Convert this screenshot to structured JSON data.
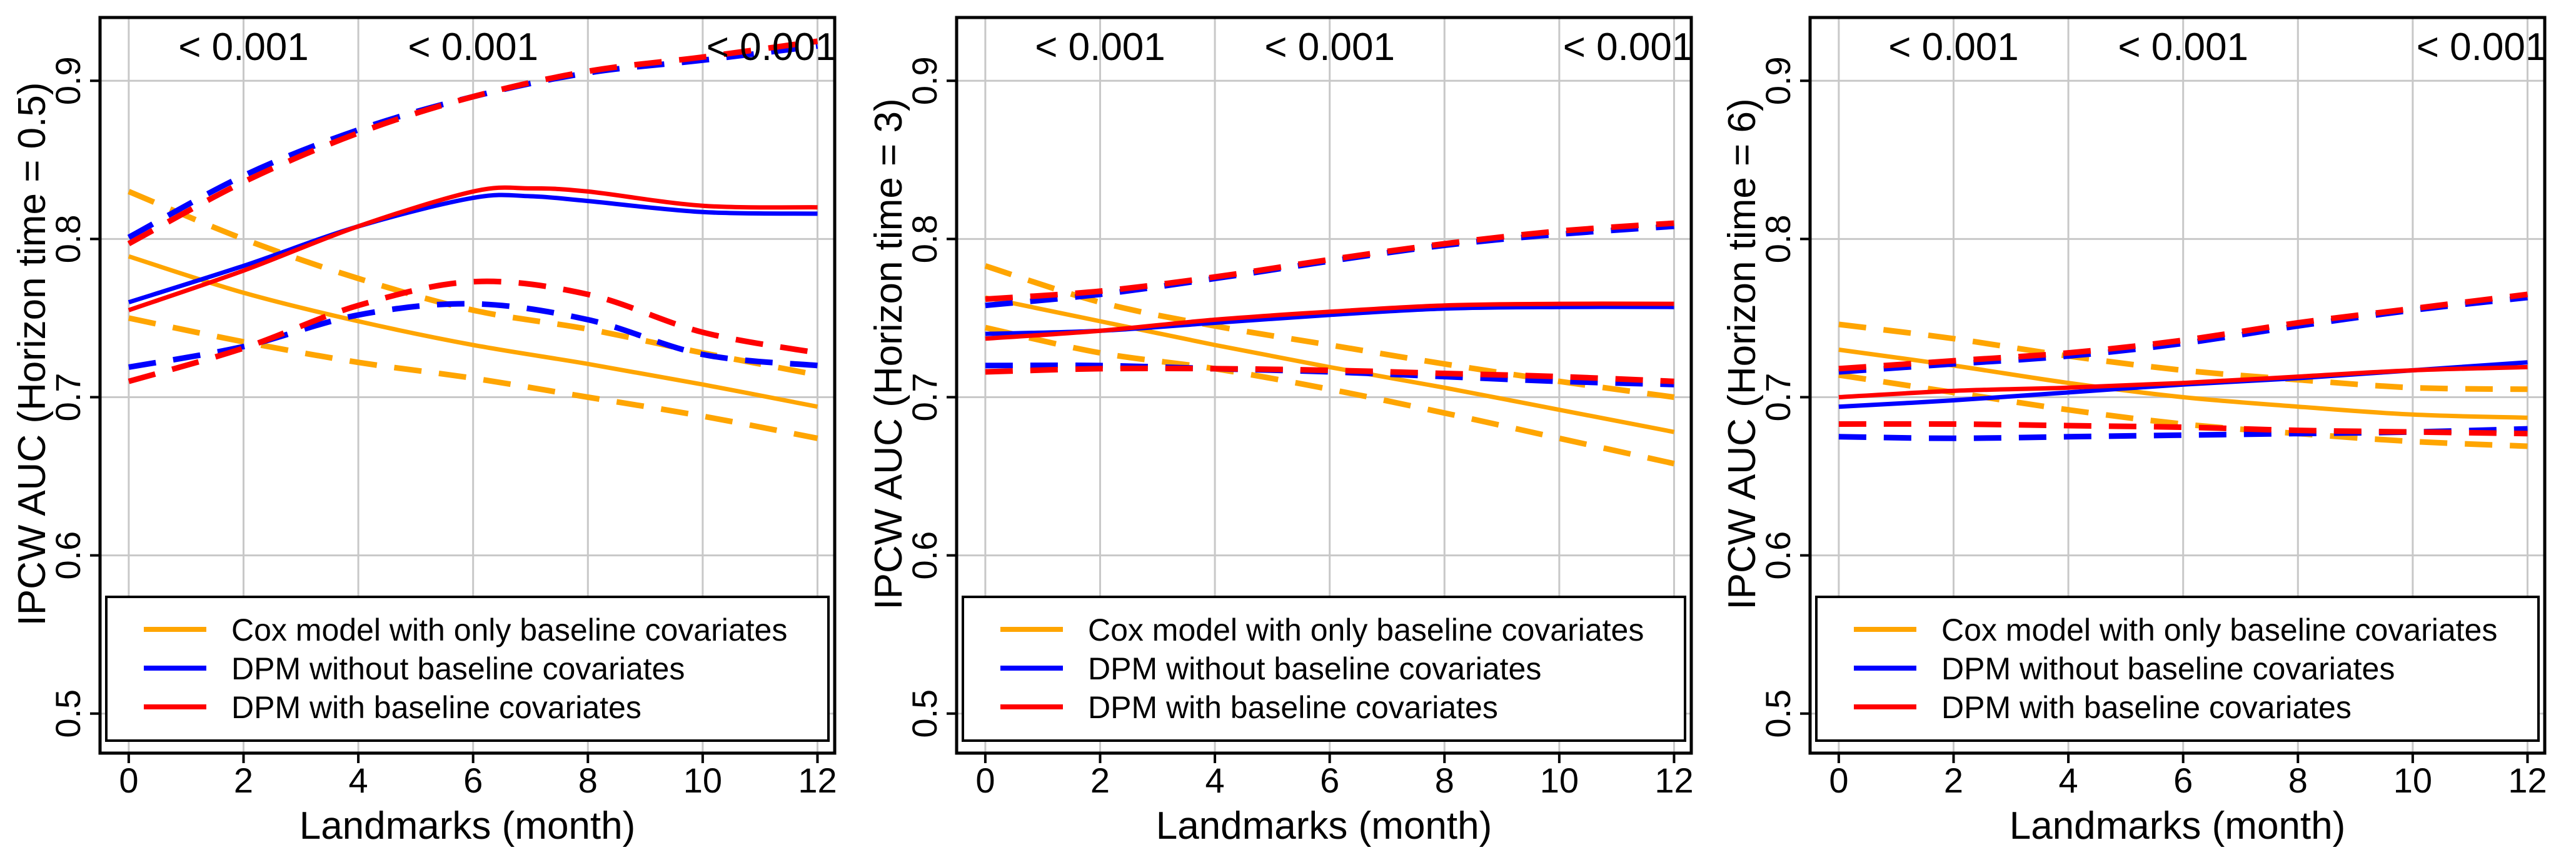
{
  "figure": {
    "xlabel": "Landmarks (month)",
    "colors": {
      "cox": "#FFA500",
      "dpm_without": "#0000FF",
      "dpm_with": "#FF0000",
      "grid": "#C8C8C8",
      "frame": "#000000"
    }
  },
  "legend": {
    "items": [
      {
        "key": "cox",
        "label": "Cox model with only baseline covariates"
      },
      {
        "key": "dpm_without",
        "label": "DPM without baseline covariates"
      },
      {
        "key": "dpm_with",
        "label": "DPM with baseline covariates"
      }
    ]
  },
  "chart_data": [
    {
      "type": "line",
      "title": "",
      "xlabel": "Landmarks (month)",
      "ylabel": "IPCW AUC (Horizon time = 0.5)",
      "xlim": [
        -0.5,
        12.3
      ],
      "ylim": [
        0.475,
        0.94
      ],
      "xticks": [
        0,
        2,
        4,
        6,
        8,
        10,
        12
      ],
      "yticks": [
        0.5,
        0.6,
        0.7,
        0.8,
        0.9
      ],
      "grid": true,
      "legend_position": "bottom",
      "annotations": [
        {
          "x": 2.0,
          "text": "< 0.001"
        },
        {
          "x": 6.0,
          "text": "< 0.001"
        },
        {
          "x": 11.2,
          "text": "< 0.001"
        }
      ],
      "series": [
        {
          "name": "Cox model with only baseline covariates",
          "key": "cox",
          "style": "solid",
          "x": [
            0,
            2,
            4,
            6,
            8,
            10,
            12
          ],
          "y": [
            0.789,
            0.766,
            0.748,
            0.733,
            0.721,
            0.708,
            0.694
          ]
        },
        {
          "name": "Cox model with only baseline covariates (upper CI)",
          "key": "cox",
          "style": "dashed",
          "x": [
            0,
            2,
            4,
            6,
            8,
            10,
            12
          ],
          "y": [
            0.83,
            0.8,
            0.775,
            0.755,
            0.743,
            0.728,
            0.714
          ]
        },
        {
          "name": "Cox model with only baseline covariates (lower CI)",
          "key": "cox",
          "style": "dashed",
          "x": [
            0,
            2,
            4,
            6,
            8,
            10,
            12
          ],
          "y": [
            0.75,
            0.735,
            0.722,
            0.712,
            0.7,
            0.688,
            0.674
          ]
        },
        {
          "name": "DPM without baseline covariates",
          "key": "dpm_without",
          "style": "solid",
          "x": [
            0,
            2,
            4,
            6,
            7,
            8,
            10,
            12
          ],
          "y": [
            0.76,
            0.783,
            0.808,
            0.826,
            0.827,
            0.824,
            0.817,
            0.816
          ]
        },
        {
          "name": "DPM without baseline covariates (upper CI)",
          "key": "dpm_without",
          "style": "dashed",
          "x": [
            0,
            2,
            4,
            6,
            8,
            10,
            12
          ],
          "y": [
            0.801,
            0.84,
            0.869,
            0.89,
            0.905,
            0.913,
            0.922
          ]
        },
        {
          "name": "DPM without baseline covariates (lower CI)",
          "key": "dpm_without",
          "style": "dashed",
          "x": [
            0,
            2,
            4,
            6,
            8,
            10,
            12
          ],
          "y": [
            0.719,
            0.732,
            0.752,
            0.759,
            0.749,
            0.727,
            0.72
          ]
        },
        {
          "name": "DPM with baseline covariates",
          "key": "dpm_with",
          "style": "solid",
          "x": [
            0,
            2,
            4,
            6,
            7,
            8,
            10,
            12
          ],
          "y": [
            0.755,
            0.78,
            0.808,
            0.83,
            0.832,
            0.83,
            0.821,
            0.82
          ]
        },
        {
          "name": "DPM with baseline covariates (upper CI)",
          "key": "dpm_with",
          "style": "dashed",
          "x": [
            0,
            2,
            4,
            6,
            8,
            10,
            12
          ],
          "y": [
            0.797,
            0.836,
            0.867,
            0.89,
            0.906,
            0.915,
            0.925
          ]
        },
        {
          "name": "DPM with baseline covariates (lower CI)",
          "key": "dpm_with",
          "style": "dashed",
          "x": [
            0,
            2,
            4,
            6,
            8,
            10,
            12
          ],
          "y": [
            0.71,
            0.731,
            0.758,
            0.773,
            0.765,
            0.741,
            0.728
          ]
        }
      ]
    },
    {
      "type": "line",
      "title": "",
      "xlabel": "Landmarks (month)",
      "ylabel": "IPCW AUC (Horizon time = 3)",
      "xlim": [
        -0.5,
        12.3
      ],
      "ylim": [
        0.475,
        0.94
      ],
      "xticks": [
        0,
        2,
        4,
        6,
        8,
        10,
        12
      ],
      "yticks": [
        0.5,
        0.6,
        0.7,
        0.8,
        0.9
      ],
      "grid": true,
      "legend_position": "bottom",
      "annotations": [
        {
          "x": 2.0,
          "text": "< 0.001"
        },
        {
          "x": 6.0,
          "text": "< 0.001"
        },
        {
          "x": 11.2,
          "text": "< 0.001"
        }
      ],
      "series": [
        {
          "name": "Cox model with only baseline covariates",
          "key": "cox",
          "style": "solid",
          "x": [
            0,
            2,
            4,
            6,
            8,
            10,
            12
          ],
          "y": [
            0.763,
            0.748,
            0.733,
            0.719,
            0.706,
            0.692,
            0.678
          ]
        },
        {
          "name": "Cox model with only baseline covariates (upper CI)",
          "key": "cox",
          "style": "dashed",
          "x": [
            0,
            2,
            4,
            6,
            8,
            10,
            12
          ],
          "y": [
            0.783,
            0.76,
            0.745,
            0.733,
            0.721,
            0.71,
            0.7
          ]
        },
        {
          "name": "Cox model with only baseline covariates (lower CI)",
          "key": "cox",
          "style": "dashed",
          "x": [
            0,
            2,
            4,
            6,
            8,
            10,
            12
          ],
          "y": [
            0.744,
            0.728,
            0.718,
            0.705,
            0.69,
            0.674,
            0.658
          ]
        },
        {
          "name": "DPM without baseline covariates",
          "key": "dpm_without",
          "style": "solid",
          "x": [
            0,
            2,
            4,
            6,
            8,
            10,
            12
          ],
          "y": [
            0.74,
            0.742,
            0.747,
            0.752,
            0.756,
            0.757,
            0.757
          ]
        },
        {
          "name": "DPM without baseline covariates (upper CI)",
          "key": "dpm_without",
          "style": "dashed",
          "x": [
            0,
            2,
            4,
            6,
            8,
            10,
            12
          ],
          "y": [
            0.758,
            0.765,
            0.775,
            0.786,
            0.796,
            0.803,
            0.808
          ]
        },
        {
          "name": "DPM without baseline covariates (lower CI)",
          "key": "dpm_without",
          "style": "dashed",
          "x": [
            0,
            2,
            4,
            6,
            8,
            10,
            12
          ],
          "y": [
            0.72,
            0.72,
            0.718,
            0.716,
            0.713,
            0.71,
            0.708
          ]
        },
        {
          "name": "DPM with baseline covariates",
          "key": "dpm_with",
          "style": "solid",
          "x": [
            0,
            2,
            4,
            6,
            8,
            10,
            12
          ],
          "y": [
            0.737,
            0.742,
            0.749,
            0.754,
            0.758,
            0.759,
            0.759
          ]
        },
        {
          "name": "DPM with baseline covariates (upper CI)",
          "key": "dpm_with",
          "style": "dashed",
          "x": [
            0,
            2,
            4,
            6,
            8,
            10,
            12
          ],
          "y": [
            0.762,
            0.767,
            0.776,
            0.787,
            0.797,
            0.805,
            0.81
          ]
        },
        {
          "name": "DPM with baseline covariates (lower CI)",
          "key": "dpm_with",
          "style": "dashed",
          "x": [
            0,
            2,
            4,
            6,
            8,
            10,
            12
          ],
          "y": [
            0.716,
            0.718,
            0.718,
            0.717,
            0.715,
            0.713,
            0.71
          ]
        }
      ]
    },
    {
      "type": "line",
      "title": "",
      "xlabel": "Landmarks (month)",
      "ylabel": "IPCW AUC (Horizon time = 6)",
      "xlim": [
        -0.5,
        12.3
      ],
      "ylim": [
        0.475,
        0.94
      ],
      "xticks": [
        0,
        2,
        4,
        6,
        8,
        10,
        12
      ],
      "yticks": [
        0.5,
        0.6,
        0.7,
        0.8,
        0.9
      ],
      "grid": true,
      "legend_position": "bottom",
      "annotations": [
        {
          "x": 2.0,
          "text": "< 0.001"
        },
        {
          "x": 6.0,
          "text": "< 0.001"
        },
        {
          "x": 11.2,
          "text": "< 0.001"
        }
      ],
      "series": [
        {
          "name": "Cox model with only baseline covariates",
          "key": "cox",
          "style": "solid",
          "x": [
            0,
            2,
            4,
            6,
            8,
            10,
            12
          ],
          "y": [
            0.73,
            0.72,
            0.709,
            0.7,
            0.694,
            0.689,
            0.687
          ]
        },
        {
          "name": "Cox model with only baseline covariates (upper CI)",
          "key": "cox",
          "style": "dashed",
          "x": [
            0,
            2,
            4,
            6,
            8,
            10,
            12
          ],
          "y": [
            0.746,
            0.737,
            0.726,
            0.717,
            0.711,
            0.706,
            0.705
          ]
        },
        {
          "name": "Cox model with only baseline covariates (lower CI)",
          "key": "cox",
          "style": "dashed",
          "x": [
            0,
            2,
            4,
            6,
            8,
            10,
            12
          ],
          "y": [
            0.714,
            0.703,
            0.692,
            0.683,
            0.677,
            0.672,
            0.669
          ]
        },
        {
          "name": "DPM without baseline covariates",
          "key": "dpm_without",
          "style": "solid",
          "x": [
            0,
            2,
            4,
            6,
            8,
            10,
            12
          ],
          "y": [
            0.694,
            0.698,
            0.703,
            0.708,
            0.712,
            0.717,
            0.722
          ]
        },
        {
          "name": "DPM without baseline covariates (upper CI)",
          "key": "dpm_without",
          "style": "dashed",
          "x": [
            0,
            2,
            4,
            6,
            8,
            10,
            12
          ],
          "y": [
            0.716,
            0.721,
            0.726,
            0.734,
            0.745,
            0.755,
            0.763
          ]
        },
        {
          "name": "DPM without baseline covariates (lower CI)",
          "key": "dpm_without",
          "style": "dashed",
          "x": [
            0,
            2,
            4,
            6,
            8,
            10,
            12
          ],
          "y": [
            0.675,
            0.674,
            0.675,
            0.676,
            0.677,
            0.678,
            0.68
          ]
        },
        {
          "name": "DPM with baseline covariates",
          "key": "dpm_with",
          "style": "solid",
          "x": [
            0,
            2,
            4,
            6,
            8,
            10,
            12
          ],
          "y": [
            0.7,
            0.704,
            0.706,
            0.709,
            0.713,
            0.717,
            0.719
          ]
        },
        {
          "name": "DPM with baseline covariates (upper CI)",
          "key": "dpm_with",
          "style": "dashed",
          "x": [
            0,
            2,
            4,
            6,
            8,
            10,
            12
          ],
          "y": [
            0.718,
            0.723,
            0.728,
            0.736,
            0.747,
            0.756,
            0.765
          ]
        },
        {
          "name": "DPM with baseline covariates (lower CI)",
          "key": "dpm_with",
          "style": "dashed",
          "x": [
            0,
            2,
            4,
            6,
            8,
            10,
            12
          ],
          "y": [
            0.683,
            0.683,
            0.682,
            0.681,
            0.679,
            0.678,
            0.677
          ]
        }
      ]
    }
  ]
}
